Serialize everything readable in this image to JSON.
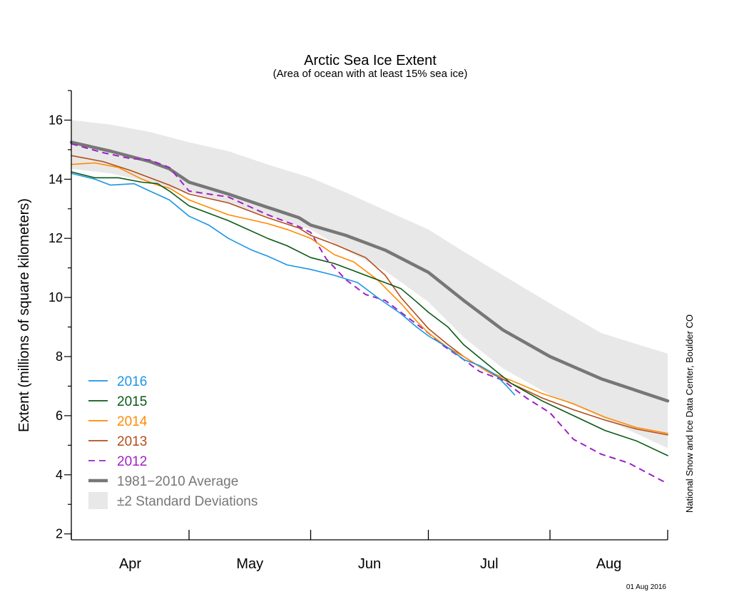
{
  "chart_data": {
    "type": "line",
    "title": "Arctic Sea Ice Extent",
    "subtitle": "(Area of ocean with at least 15% sea ice)",
    "ylabel": "Extent (millions of square kilometers)",
    "xlabel": "",
    "ylim": [
      1.8,
      17
    ],
    "yticks": [
      2,
      4,
      6,
      8,
      10,
      12,
      14,
      16
    ],
    "xlim": [
      0,
      152
    ],
    "x_unit": "days since 01 Apr",
    "month_labels": [
      "Apr",
      "May",
      "Jun",
      "Jul",
      "Aug"
    ],
    "month_boundaries": [
      0,
      30,
      61,
      91,
      122,
      152
    ],
    "grid": false,
    "legend_placement": "bottom-left",
    "source": "National Snow and Ice Data Center, Boulder CO",
    "date_stamp": "01 Aug 2016",
    "band": {
      "name": "±2 Standard Deviations",
      "color": "#e8e8e8",
      "x": [
        0,
        10,
        20,
        30,
        40,
        50,
        61,
        70,
        80,
        91,
        100,
        110,
        122,
        135,
        152
      ],
      "upper": [
        16.0,
        15.85,
        15.6,
        15.25,
        14.95,
        14.5,
        14.05,
        13.55,
        12.95,
        12.3,
        11.55,
        10.75,
        9.8,
        8.8,
        8.1
      ],
      "lower": [
        14.35,
        14.2,
        13.9,
        13.55,
        13.2,
        12.75,
        12.3,
        11.6,
        10.9,
        9.85,
        8.65,
        7.6,
        6.7,
        5.95,
        4.9
      ]
    },
    "series": [
      {
        "name": "1981−2010 Average",
        "color": "#777777",
        "dashed": false,
        "width": 4.5,
        "x": [
          0,
          10,
          20,
          25,
          30,
          40,
          50,
          58,
          61,
          70,
          80,
          91,
          100,
          110,
          122,
          135,
          152
        ],
        "values": [
          15.25,
          14.95,
          14.6,
          14.35,
          13.9,
          13.5,
          13.05,
          12.7,
          12.45,
          12.1,
          11.6,
          10.85,
          9.9,
          8.9,
          8.0,
          7.25,
          6.5
        ]
      },
      {
        "name": "2012",
        "color": "#a020c8",
        "dashed": true,
        "width": 2,
        "x": [
          0,
          8,
          15,
          20,
          25,
          30,
          40,
          50,
          58,
          61,
          65,
          70,
          75,
          80,
          85,
          91,
          95,
          100,
          104,
          110,
          116,
          122,
          128,
          135,
          142,
          152
        ],
        "values": [
          15.2,
          14.9,
          14.7,
          14.65,
          14.4,
          13.6,
          13.4,
          12.8,
          12.4,
          12.2,
          11.3,
          10.6,
          10.1,
          9.9,
          9.4,
          8.8,
          8.35,
          7.9,
          7.5,
          7.2,
          6.6,
          6.1,
          5.2,
          4.7,
          4.4,
          3.7
        ]
      },
      {
        "name": "2013",
        "color": "#b24e1c",
        "dashed": false,
        "width": 1.6,
        "x": [
          0,
          8,
          15,
          22,
          25,
          30,
          40,
          50,
          58,
          61,
          67,
          75,
          80,
          84,
          88,
          91,
          96,
          100,
          106,
          112,
          120,
          128,
          136,
          144,
          152
        ],
        "values": [
          14.8,
          14.6,
          14.3,
          13.95,
          13.8,
          13.5,
          13.2,
          12.7,
          12.35,
          12.1,
          11.8,
          11.35,
          10.75,
          10.0,
          9.4,
          8.95,
          8.4,
          8.0,
          7.5,
          7.1,
          6.6,
          6.2,
          5.85,
          5.55,
          5.35
        ]
      },
      {
        "name": "2014",
        "color": "#ff8a00",
        "dashed": false,
        "width": 1.6,
        "x": [
          0,
          6,
          12,
          18,
          22,
          25,
          30,
          40,
          50,
          55,
          61,
          67,
          72,
          78,
          84,
          88,
          91,
          96,
          100,
          106,
          112,
          120,
          128,
          136,
          144,
          152
        ],
        "values": [
          14.5,
          14.55,
          14.4,
          14.0,
          13.8,
          13.7,
          13.3,
          12.8,
          12.5,
          12.3,
          12.0,
          11.45,
          11.2,
          10.6,
          9.8,
          9.2,
          8.8,
          8.3,
          8.0,
          7.5,
          7.2,
          6.75,
          6.4,
          5.95,
          5.6,
          5.4
        ]
      },
      {
        "name": "2015",
        "color": "#0a5a14",
        "dashed": false,
        "width": 1.6,
        "x": [
          0,
          6,
          12,
          18,
          22,
          25,
          30,
          40,
          50,
          55,
          61,
          67,
          72,
          78,
          84,
          88,
          91,
          96,
          100,
          106,
          112,
          120,
          128,
          136,
          144,
          152
        ],
        "values": [
          14.25,
          14.05,
          14.05,
          13.9,
          13.85,
          13.6,
          13.1,
          12.6,
          12.0,
          11.75,
          11.35,
          11.15,
          10.9,
          10.6,
          10.3,
          9.85,
          9.5,
          9.0,
          8.4,
          7.75,
          7.1,
          6.5,
          6.0,
          5.5,
          5.15,
          4.65
        ]
      },
      {
        "name": "2016",
        "color": "#1a96e6",
        "dashed": false,
        "width": 1.6,
        "x": [
          0,
          6,
          10,
          16,
          20,
          25,
          30,
          35,
          40,
          46,
          50,
          55,
          61,
          67,
          73,
          78,
          84,
          88,
          91,
          96,
          100,
          104,
          108,
          111,
          113
        ],
        "values": [
          14.2,
          14.0,
          13.8,
          13.85,
          13.6,
          13.3,
          12.75,
          12.45,
          12.0,
          11.6,
          11.4,
          11.1,
          10.95,
          10.75,
          10.5,
          10.0,
          9.45,
          9.0,
          8.7,
          8.3,
          7.9,
          7.7,
          7.4,
          7.0,
          6.7
        ]
      }
    ],
    "legend": [
      {
        "label": "2016",
        "color": "#1a96e6",
        "kind": "line"
      },
      {
        "label": "2015",
        "color": "#0a5a14",
        "kind": "line"
      },
      {
        "label": "2014",
        "color": "#ff8a00",
        "kind": "line"
      },
      {
        "label": "2013",
        "color": "#b24e1c",
        "kind": "line"
      },
      {
        "label": "2012",
        "color": "#a020c8",
        "kind": "dashed"
      },
      {
        "label": "1981−2010 Average",
        "color": "#777777",
        "kind": "thick"
      },
      {
        "label": "±2 Standard Deviations",
        "color": "#e8e8e8",
        "kind": "box"
      }
    ]
  }
}
